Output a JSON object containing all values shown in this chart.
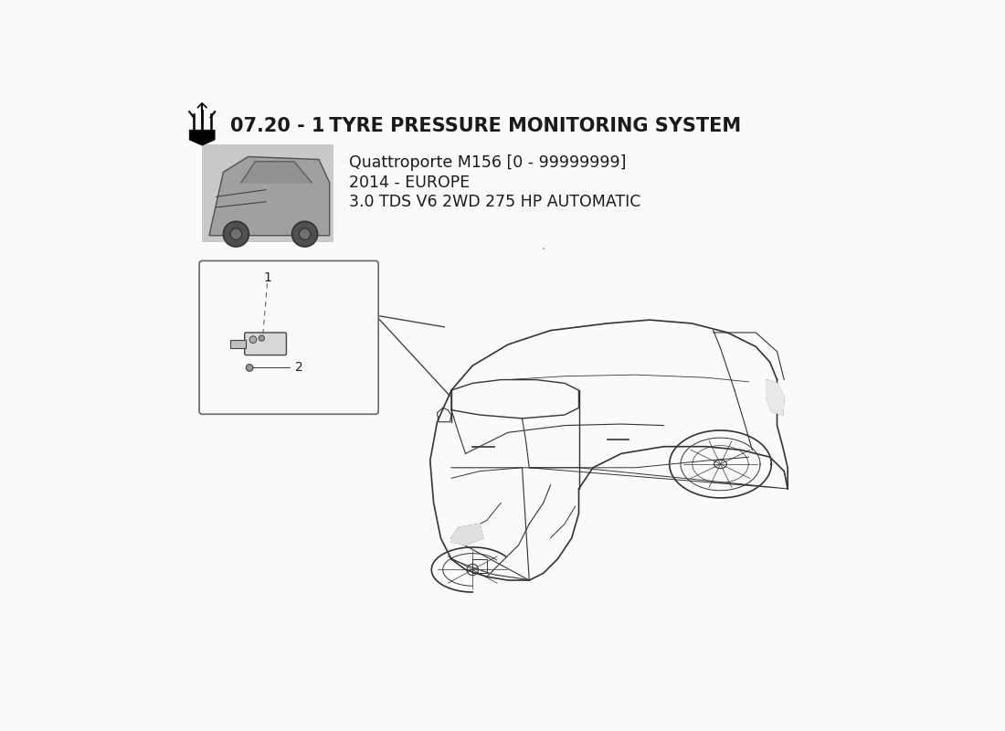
{
  "title_bold": "07.20 - 1",
  "title_normal": " TYRE PRESSURE MONITORING SYSTEM",
  "subtitle_line1": "Quattroporte M156 [0 - 99999999]",
  "subtitle_line2": "2014 - EUROPE",
  "subtitle_line3": "3.0 TDS V6 2WD 275 HP AUTOMATIC",
  "bg_color": "#FAFAF8",
  "text_color": "#1a1a1a",
  "part_label_1": "1",
  "part_label_2": "2",
  "box_edge_color": "#666666",
  "line_color": "#444444",
  "car_line_color": "#333333"
}
